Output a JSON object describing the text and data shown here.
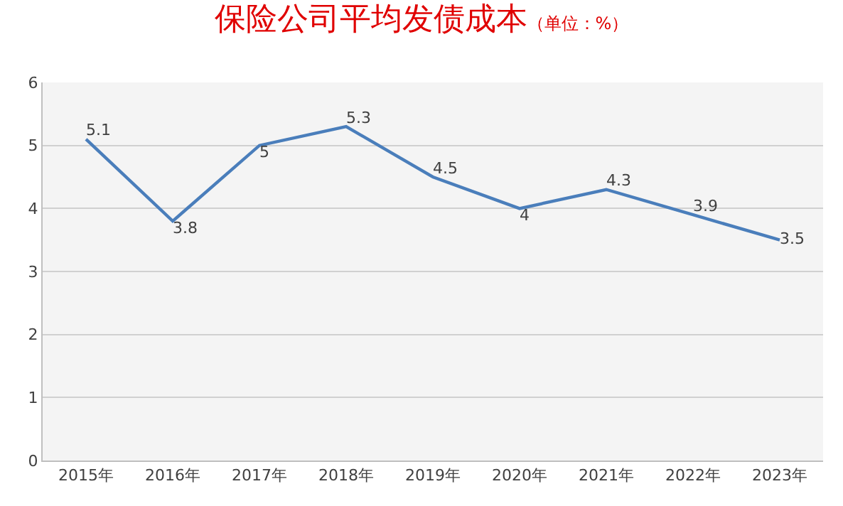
{
  "chart_data": {
    "type": "line",
    "title": "保险公司平均发债成本",
    "subtitle": "（单位：%）",
    "categories": [
      "2015年",
      "2016年",
      "2017年",
      "2018年",
      "2019年",
      "2020年",
      "2021年",
      "2022年",
      "2023年"
    ],
    "series": [
      {
        "color": "#4a7ebb",
        "values": [
          5.1,
          3.8,
          5,
          5.3,
          4.5,
          4,
          4.3,
          3.9,
          3.5
        ]
      }
    ],
    "ylim": [
      0,
      6
    ],
    "yticks": [
      0,
      1,
      2,
      3,
      4,
      5,
      6
    ],
    "grid": "y",
    "marker": "none",
    "line_style": "solid",
    "data_labels": true
  }
}
